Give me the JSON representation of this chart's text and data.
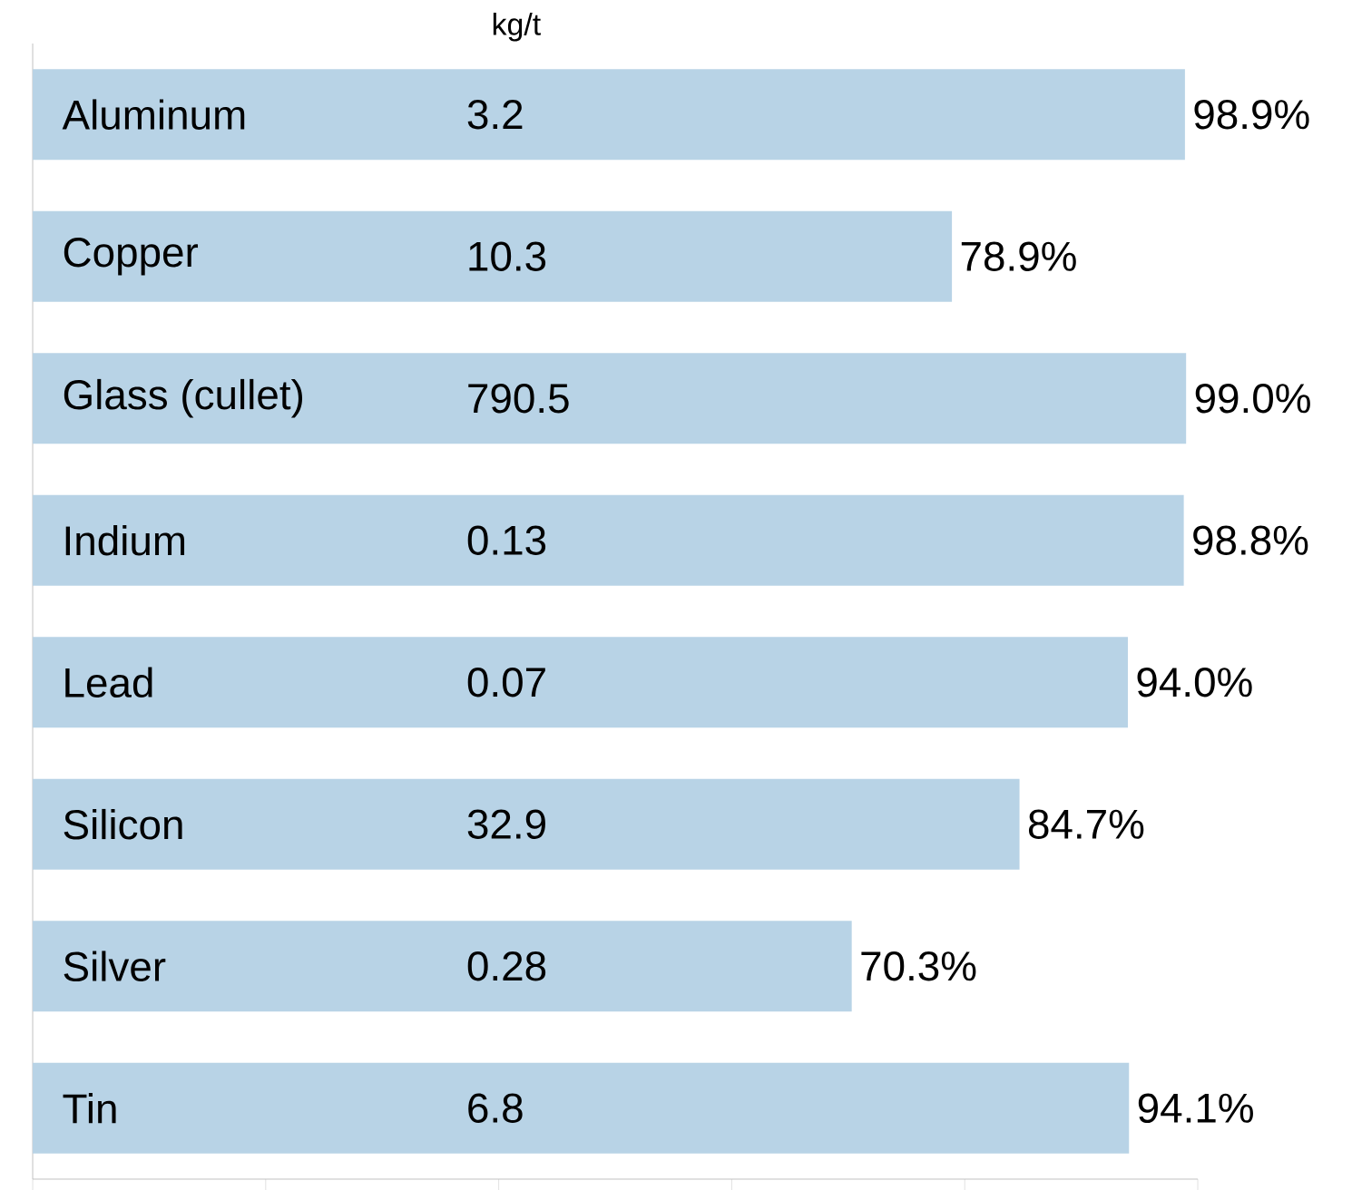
{
  "chart_data": {
    "type": "bar",
    "orientation": "horizontal",
    "categories": [
      "Aluminum",
      "Copper",
      "Glass (cullet)",
      "Indium",
      "Lead",
      "Silicon",
      "Silver",
      "Tin"
    ],
    "values": [
      98.9,
      78.9,
      99.0,
      98.8,
      94.0,
      84.7,
      70.3,
      94.1
    ],
    "value_labels": [
      "98.9%",
      "78.9%",
      "99.0%",
      "98.8%",
      "94.0%",
      "84.7%",
      "70.3%",
      "94.1%"
    ],
    "color": "#b8d3e6",
    "xlim": [
      0,
      100
    ],
    "xticks": [
      {
        "value": 0,
        "label": null
      },
      {
        "value": 20,
        "label": null
      },
      {
        "value": 40,
        "label": null
      },
      {
        "value": 60,
        "label": null
      },
      {
        "value": 80,
        "label": null
      },
      {
        "value": 100,
        "label": null
      }
    ],
    "tick_labels": "y",
    "annotations": [
      "kg/t",
      "3.2",
      "10.3",
      "790.5",
      "0.13",
      "0.07",
      "32.9",
      "0.28",
      "6.8"
    ]
  }
}
